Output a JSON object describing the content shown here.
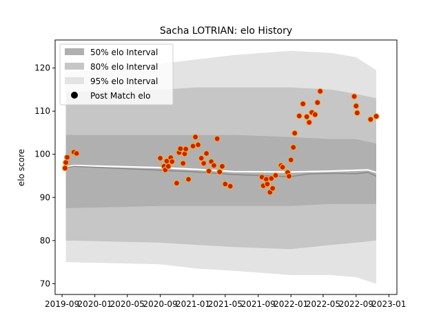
{
  "chart_data": {
    "type": "scatter",
    "title": "Sacha LOTRIAN: elo History",
    "xlabel": "",
    "ylabel": "elo score",
    "xlim": [
      "2019-08-06",
      "2023-01-31"
    ],
    "ylim": [
      67.5,
      126.5
    ],
    "x_ticks": [
      "2019-09",
      "2020-01",
      "2020-05",
      "2020-09",
      "2021-01",
      "2021-05",
      "2021-09",
      "2022-01",
      "2022-05",
      "2022-09",
      "2023-01"
    ],
    "y_ticks": [
      70,
      80,
      90,
      100,
      110,
      120
    ],
    "grid": false,
    "legend": {
      "placement": "upper-left",
      "entries": [
        "50% elo Interval",
        "80% elo Interval",
        "95% elo Interval",
        "Post Match elo"
      ]
    },
    "colors": {
      "band50": "#b0b0b0",
      "band80": "#c6c6c6",
      "band95": "#e3e3e3",
      "expected_line": "#888888",
      "median_line": "#ffffff",
      "point_fill": "#cc2200",
      "point_edge": "#f0b030"
    },
    "series": [
      {
        "name": "95% elo Interval",
        "x": [
          "2019-09-15",
          "2020-09-01",
          "2021-01-15",
          "2021-06-01",
          "2022-01-01",
          "2022-06-01",
          "2022-09-01",
          "2022-11-15"
        ],
        "lower": [
          75,
          74.5,
          73.5,
          73,
          72,
          72,
          71.5,
          70
        ],
        "upper": [
          119,
          121,
          122,
          123,
          124,
          123.5,
          122.5,
          119.5
        ]
      },
      {
        "name": "80% elo Interval",
        "x": [
          "2019-09-15",
          "2020-09-01",
          "2021-01-15",
          "2021-06-01",
          "2022-01-01",
          "2022-06-01",
          "2022-09-01",
          "2022-11-15"
        ],
        "lower": [
          80,
          79.5,
          79,
          78.5,
          78,
          79,
          79.5,
          80
        ],
        "upper": [
          114.5,
          115,
          115.5,
          115.5,
          115.5,
          115,
          114,
          113
        ]
      },
      {
        "name": "50% elo Interval",
        "x": [
          "2019-09-15",
          "2020-09-01",
          "2021-01-15",
          "2021-06-01",
          "2022-01-01",
          "2022-06-01",
          "2022-09-01",
          "2022-11-15"
        ],
        "lower": [
          87.5,
          88,
          88,
          88,
          88,
          88.5,
          88.5,
          88.5
        ],
        "upper": [
          104.5,
          104.5,
          104.5,
          104.5,
          104,
          103.5,
          103.5,
          102.5
        ]
      },
      {
        "name": "Expected elo",
        "x": [
          "2019-09-10",
          "2019-10-15",
          "2020-09-01",
          "2021-01-15",
          "2021-06-01",
          "2022-01-01",
          "2022-03-01",
          "2022-06-01",
          "2022-09-01",
          "2022-10-15",
          "2022-11-15"
        ],
        "values": [
          96.8,
          97.2,
          96.3,
          95.9,
          95.3,
          94.8,
          95.4,
          95.6,
          95.5,
          95.8,
          94.9
        ]
      },
      {
        "name": "Median elo",
        "x": [
          "2019-09-10",
          "2019-10-15",
          "2020-09-01",
          "2021-01-15",
          "2021-06-01",
          "2022-01-01",
          "2022-03-01",
          "2022-06-01",
          "2022-09-01",
          "2022-10-15",
          "2022-11-15"
        ],
        "values": [
          97.0,
          97.4,
          96.9,
          96.5,
          96.0,
          95.9,
          96.0,
          96.1,
          96.3,
          96.4,
          95.8
        ]
      },
      {
        "name": "Post Match elo",
        "x": [
          "2019-09-12",
          "2019-09-15",
          "2019-09-20",
          "2019-10-15",
          "2019-10-25",
          "2020-09-01",
          "2020-09-15",
          "2020-09-20",
          "2020-09-25",
          "2020-10-01",
          "2020-10-10",
          "2020-10-15",
          "2020-11-01",
          "2020-11-10",
          "2020-11-15",
          "2020-11-25",
          "2020-12-01",
          "2020-12-05",
          "2020-12-15",
          "2021-01-01",
          "2021-01-10",
          "2021-01-20",
          "2021-02-01",
          "2021-02-10",
          "2021-02-20",
          "2021-03-01",
          "2021-03-10",
          "2021-03-20",
          "2021-04-01",
          "2021-04-10",
          "2021-04-20",
          "2021-05-01",
          "2021-05-20",
          "2021-09-15",
          "2021-09-20",
          "2021-10-01",
          "2021-10-05",
          "2021-10-15",
          "2021-10-20",
          "2021-10-25",
          "2021-11-05",
          "2021-11-25",
          "2021-12-01",
          "2021-12-20",
          "2021-12-25",
          "2022-01-01",
          "2022-01-10",
          "2022-01-15",
          "2022-02-01",
          "2022-02-15",
          "2022-03-01",
          "2022-03-10",
          "2022-03-20",
          "2022-04-01",
          "2022-04-10",
          "2022-04-20",
          "2022-08-25",
          "2022-09-01",
          "2022-09-05",
          "2022-10-25",
          "2022-11-15"
        ],
        "values": [
          96.8,
          98.1,
          99.3,
          100.5,
          100.2,
          99.1,
          97.2,
          96.4,
          98.4,
          97.2,
          99.2,
          98.3,
          93.3,
          100.4,
          101.3,
          97.9,
          100.1,
          101.2,
          94.2,
          101.9,
          104.0,
          102.2,
          99.1,
          97.9,
          100.2,
          96.1,
          98.3,
          97.4,
          103.6,
          95.9,
          97.2,
          93.1,
          92.6,
          94.7,
          92.7,
          94.2,
          93.1,
          91.2,
          94.4,
          92.1,
          95.1,
          97.4,
          97.0,
          95.8,
          94.9,
          98.7,
          101.6,
          104.9,
          108.9,
          111.7,
          108.7,
          107.4,
          109.7,
          109.2,
          112.0,
          114.6,
          113.4,
          111.2,
          109.6,
          108.1,
          108.8
        ]
      }
    ]
  }
}
